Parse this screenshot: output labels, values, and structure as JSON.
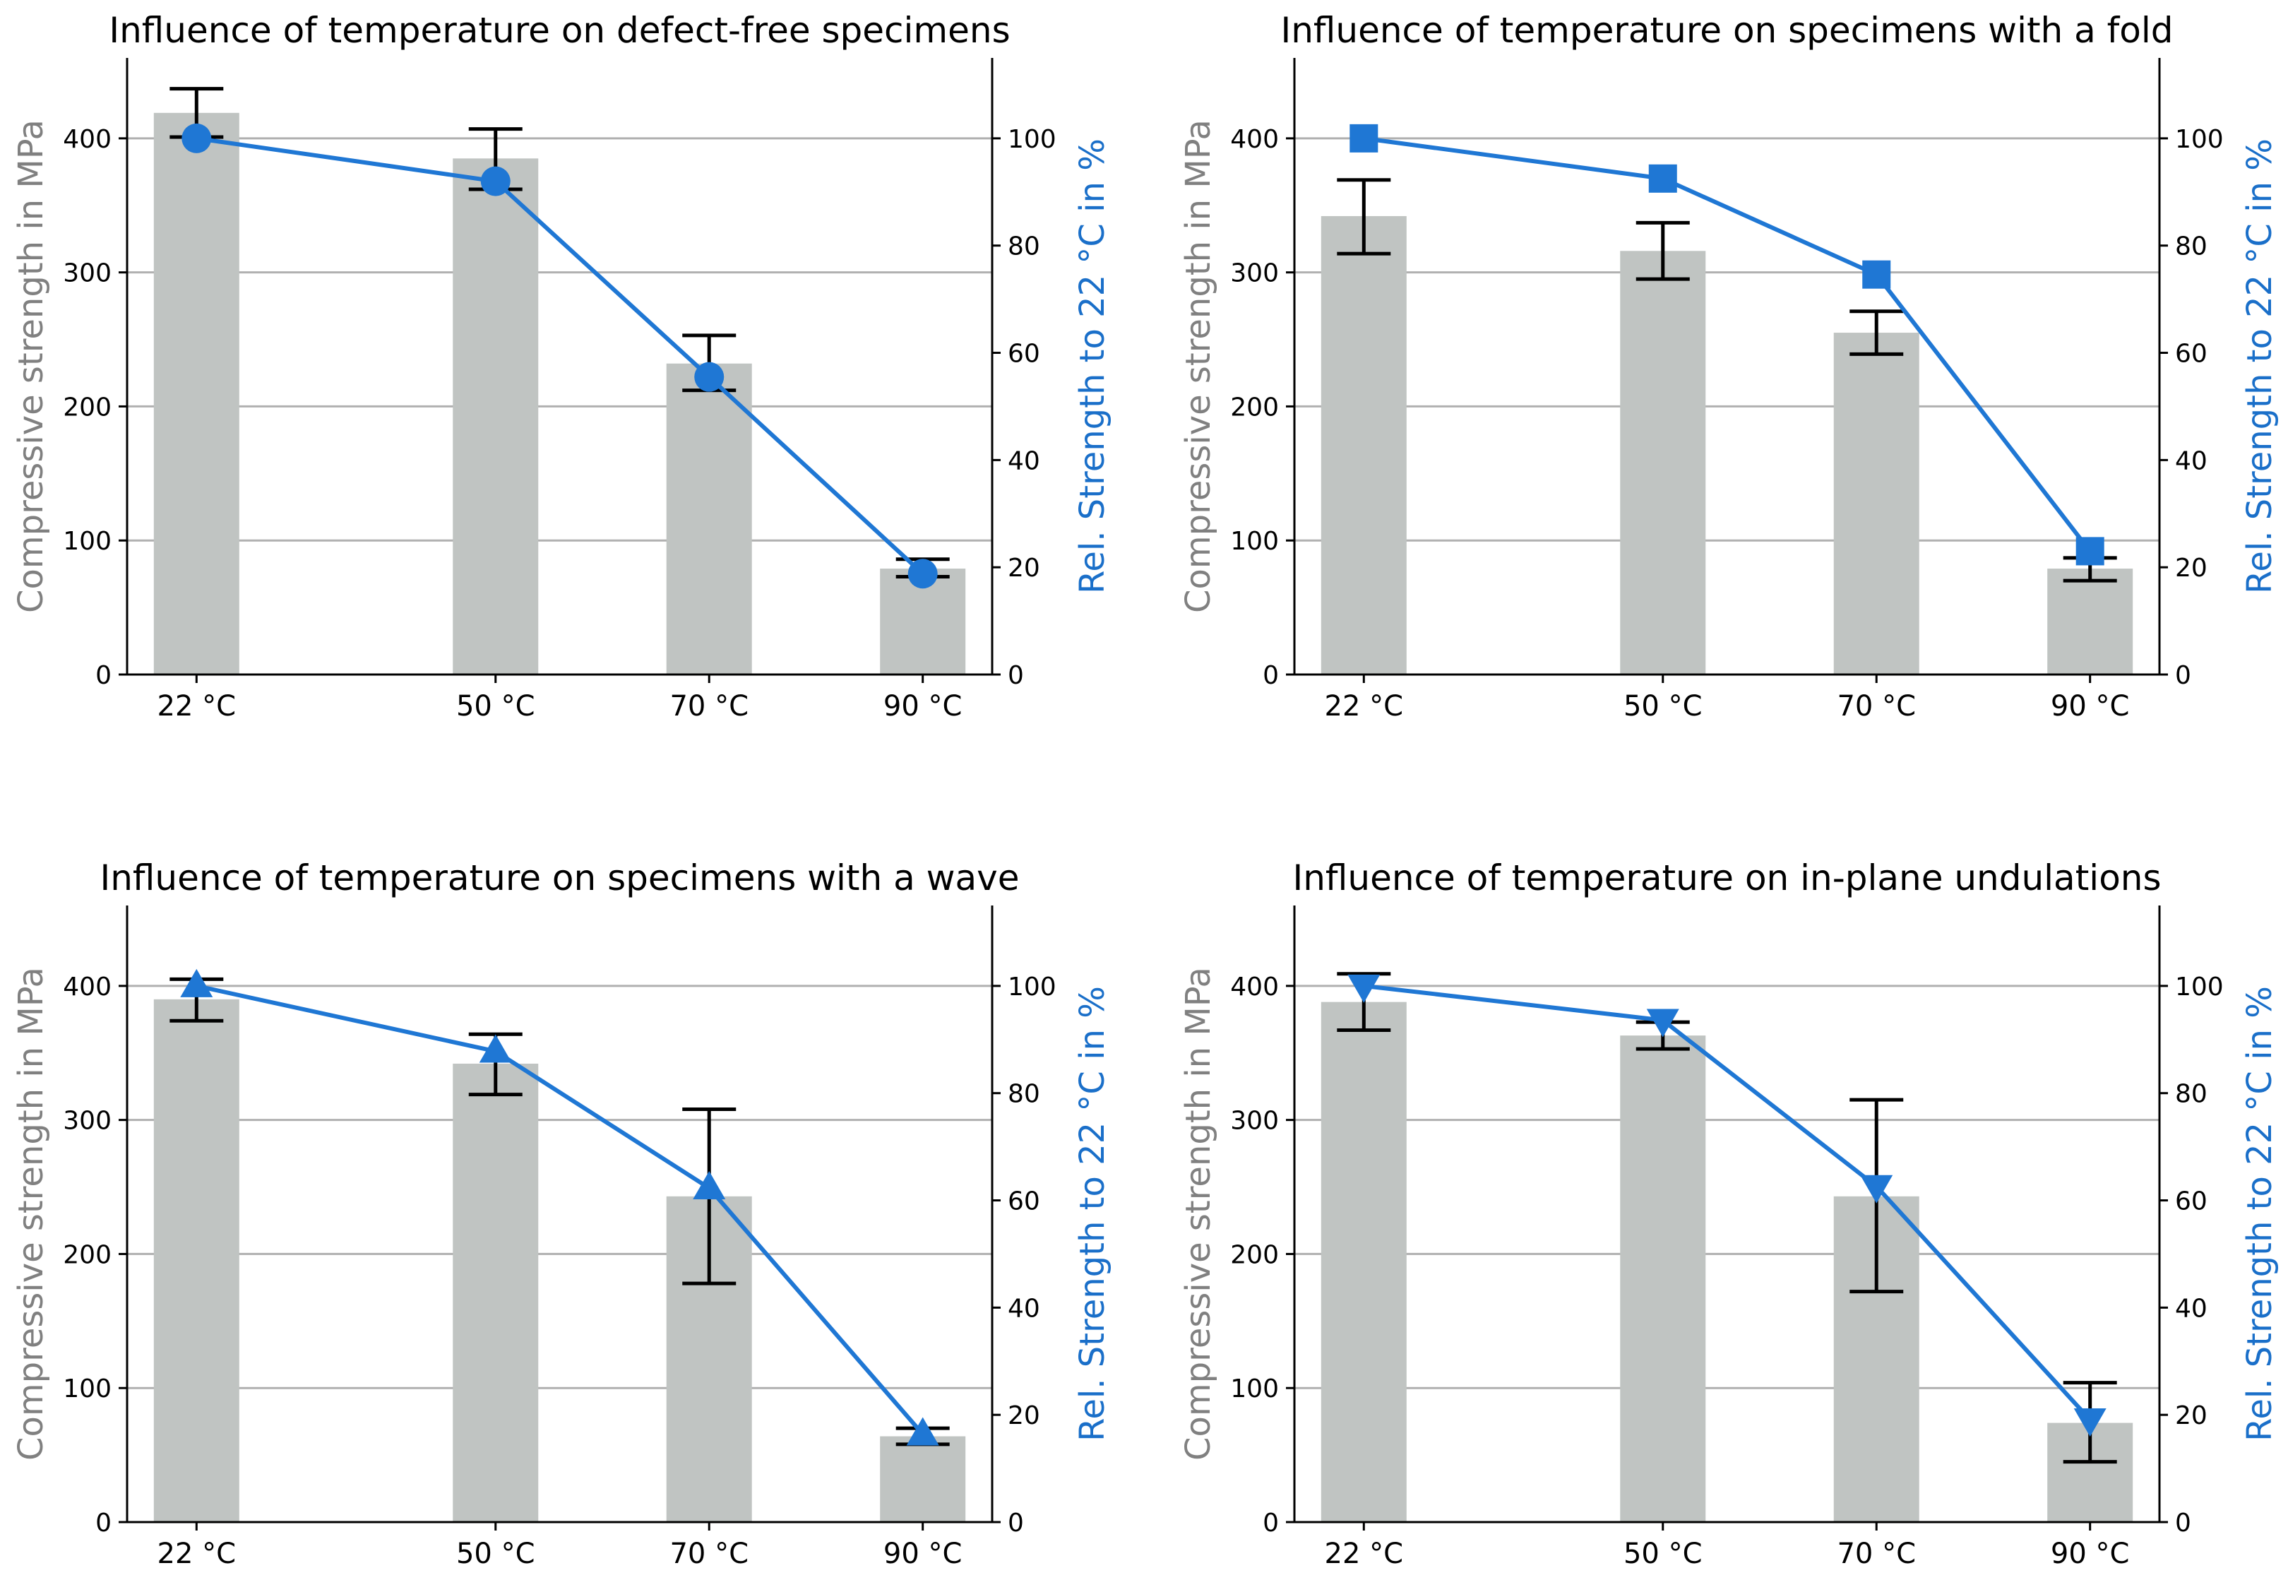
{
  "colors": {
    "bar": "#c0c4c2",
    "line": "#1f77d4",
    "left_axis_label": "#808080",
    "right_axis_label": "#1a6fc9",
    "grid": "#b0b0b0",
    "errorbar": "#000000"
  },
  "chart_data": [
    {
      "type": "bar",
      "title": "Influence of temperature on defect-free specimens",
      "categories": [
        "22 °C",
        "50 °C",
        "70 °C",
        "90 °C"
      ],
      "x_positions": [
        22,
        50,
        70,
        90
      ],
      "ylabel": "Compressive strength in MPa",
      "ylabel_right": "Rel. Strength to 22 °C in %",
      "ylim": [
        0,
        400
      ],
      "ylim_right": [
        0,
        100
      ],
      "yticks": [
        "0",
        "100",
        "200",
        "300",
        "400"
      ],
      "yticks_right": [
        "0",
        "20",
        "40",
        "60",
        "80",
        "100"
      ],
      "grid": "horizontal",
      "bars": {
        "values": [
          419,
          385,
          232,
          79
        ],
        "err_low": [
          401,
          362,
          212,
          73
        ],
        "err_high": [
          437,
          407,
          253,
          86
        ]
      },
      "line": {
        "marker": "circle",
        "values": [
          100,
          92,
          55.5,
          18.8
        ]
      }
    },
    {
      "type": "bar",
      "title": "Influence of temperature on specimens with a fold",
      "categories": [
        "22 °C",
        "50 °C",
        "70 °C",
        "90 °C"
      ],
      "x_positions": [
        22,
        50,
        70,
        90
      ],
      "ylabel": "Compressive strength in MPa",
      "ylabel_right": "Rel. Strength to 22 °C in %",
      "ylim": [
        0,
        400
      ],
      "ylim_right": [
        0,
        100
      ],
      "yticks": [
        "0",
        "100",
        "200",
        "300",
        "400"
      ],
      "yticks_right": [
        "0",
        "20",
        "40",
        "60",
        "80",
        "100"
      ],
      "grid": "horizontal",
      "bars": {
        "values": [
          342,
          316,
          255,
          79
        ],
        "err_low": [
          314,
          295,
          239,
          70
        ],
        "err_high": [
          369,
          337,
          271,
          87
        ]
      },
      "line": {
        "marker": "square",
        "values": [
          100,
          92.5,
          74.6,
          23
        ]
      }
    },
    {
      "type": "bar",
      "title": "Influence of temperature on specimens with a wave",
      "categories": [
        "22 °C",
        "50 °C",
        "70 °C",
        "90 °C"
      ],
      "x_positions": [
        22,
        50,
        70,
        90
      ],
      "ylabel": "Compressive strength in MPa",
      "ylabel_right": "Rel. Strength to 22 °C in %",
      "ylim": [
        0,
        400
      ],
      "ylim_right": [
        0,
        100
      ],
      "yticks": [
        "0",
        "100",
        "200",
        "300",
        "400"
      ],
      "yticks_right": [
        "0",
        "20",
        "40",
        "60",
        "80",
        "100"
      ],
      "grid": "horizontal",
      "bars": {
        "values": [
          390,
          342,
          243,
          64
        ],
        "err_low": [
          374,
          319,
          178,
          58
        ],
        "err_high": [
          405,
          364,
          308,
          70
        ]
      },
      "line": {
        "marker": "triangle-up",
        "values": [
          100,
          87.8,
          62.3,
          16.4
        ]
      }
    },
    {
      "type": "bar",
      "title": "Influence of temperature on in-plane undulations",
      "categories": [
        "22 °C",
        "50 °C",
        "70 °C",
        "90 °C"
      ],
      "x_positions": [
        22,
        50,
        70,
        90
      ],
      "ylabel": "Compressive strength in MPa",
      "ylabel_right": "Rel. Strength to 22 °C in %",
      "ylim": [
        0,
        400
      ],
      "ylim_right": [
        0,
        100
      ],
      "yticks": [
        "0",
        "100",
        "200",
        "300",
        "400"
      ],
      "yticks_right": [
        "0",
        "20",
        "40",
        "60",
        "80",
        "100"
      ],
      "grid": "horizontal",
      "bars": {
        "values": [
          388,
          363,
          243,
          74
        ],
        "err_low": [
          367,
          353,
          172,
          45
        ],
        "err_high": [
          409,
          373,
          315,
          104
        ]
      },
      "line": {
        "marker": "triangle-down",
        "values": [
          100,
          93.6,
          62.6,
          19.1
        ]
      }
    }
  ]
}
